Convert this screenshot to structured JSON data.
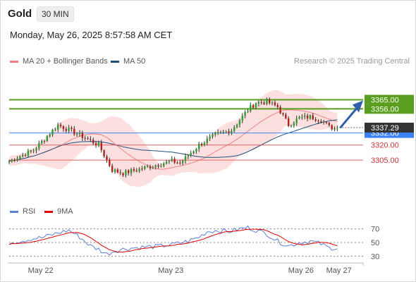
{
  "header": {
    "symbol": "Gold",
    "timeframe": "30 MIN",
    "timestamp": "Monday, May 26, 2025 8:57:58 AM CET"
  },
  "legend": {
    "ma20_label": "MA 20 + Bollinger Bands",
    "ma50_label": "MA 50",
    "rsi_label": "RSI",
    "ma9_label": "9MA",
    "ma20_color": "#f08080",
    "ma50_color": "#1f4e79",
    "rsi_color": "#5b7fd6",
    "ma9_color": "#e00000"
  },
  "source": "Research © 2025 Trading Central",
  "chart_data": [
    {
      "type": "candlestick",
      "ylim": [
        3270,
        3385
      ],
      "x_ticks": [
        "May 22",
        "May 23",
        "May 26",
        "May 27"
      ],
      "x_tick_positions": [
        9,
        57,
        105,
        119
      ],
      "n_candles": 130,
      "last_price": "3337.29",
      "levels": [
        {
          "value": 3365.0,
          "label": "3365.00",
          "kind": "resistance",
          "color": "#5a9e1f"
        },
        {
          "value": 3356.0,
          "label": "3356.00",
          "kind": "resistance",
          "color": "#5a9e1f"
        },
        {
          "value": 3332.0,
          "label": "3332.00",
          "kind": "pivot",
          "color": "#3b82f6"
        },
        {
          "value": 3320.0,
          "label": "3320.00",
          "kind": "support",
          "color": "#e06060"
        },
        {
          "value": 3305.0,
          "label": "3305.00",
          "kind": "support",
          "color": "#e06060"
        }
      ],
      "anchors": [
        [
          0,
          3304
        ],
        [
          9,
          3315
        ],
        [
          18,
          3340
        ],
        [
          26,
          3330
        ],
        [
          33,
          3320
        ],
        [
          38,
          3295
        ],
        [
          42,
          3292
        ],
        [
          48,
          3296
        ],
        [
          54,
          3300
        ],
        [
          60,
          3304
        ],
        [
          63,
          3302
        ],
        [
          70,
          3320
        ],
        [
          76,
          3330
        ],
        [
          82,
          3335
        ],
        [
          85,
          3345
        ],
        [
          88,
          3355
        ],
        [
          91,
          3362
        ],
        [
          95,
          3363
        ],
        [
          99,
          3358
        ],
        [
          103,
          3340
        ],
        [
          107,
          3347
        ],
        [
          111,
          3348
        ],
        [
          115,
          3345
        ],
        [
          118,
          3338
        ],
        [
          121,
          3336
        ]
      ],
      "forecast_arrow": {
        "from": 3337,
        "to": 3365
      }
    },
    {
      "type": "line",
      "name": "RSI",
      "ylim": [
        20,
        80
      ],
      "y_ticks": [
        30,
        50,
        70
      ],
      "rsi_anchors": [
        [
          0,
          50
        ],
        [
          5,
          53
        ],
        [
          9,
          56
        ],
        [
          12,
          57
        ],
        [
          18,
          64
        ],
        [
          22,
          68
        ],
        [
          26,
          58
        ],
        [
          30,
          45
        ],
        [
          33,
          40
        ],
        [
          36,
          33
        ],
        [
          39,
          38
        ],
        [
          43,
          41
        ],
        [
          48,
          43
        ],
        [
          54,
          44
        ],
        [
          60,
          47
        ],
        [
          66,
          52
        ],
        [
          70,
          58
        ],
        [
          73,
          66
        ],
        [
          77,
          68
        ],
        [
          81,
          66
        ],
        [
          85,
          70
        ],
        [
          88,
          72
        ],
        [
          91,
          68
        ],
        [
          95,
          63
        ],
        [
          99,
          52
        ],
        [
          103,
          45
        ],
        [
          107,
          50
        ],
        [
          111,
          52
        ],
        [
          115,
          48
        ],
        [
          118,
          42
        ],
        [
          121,
          42
        ]
      ]
    }
  ]
}
